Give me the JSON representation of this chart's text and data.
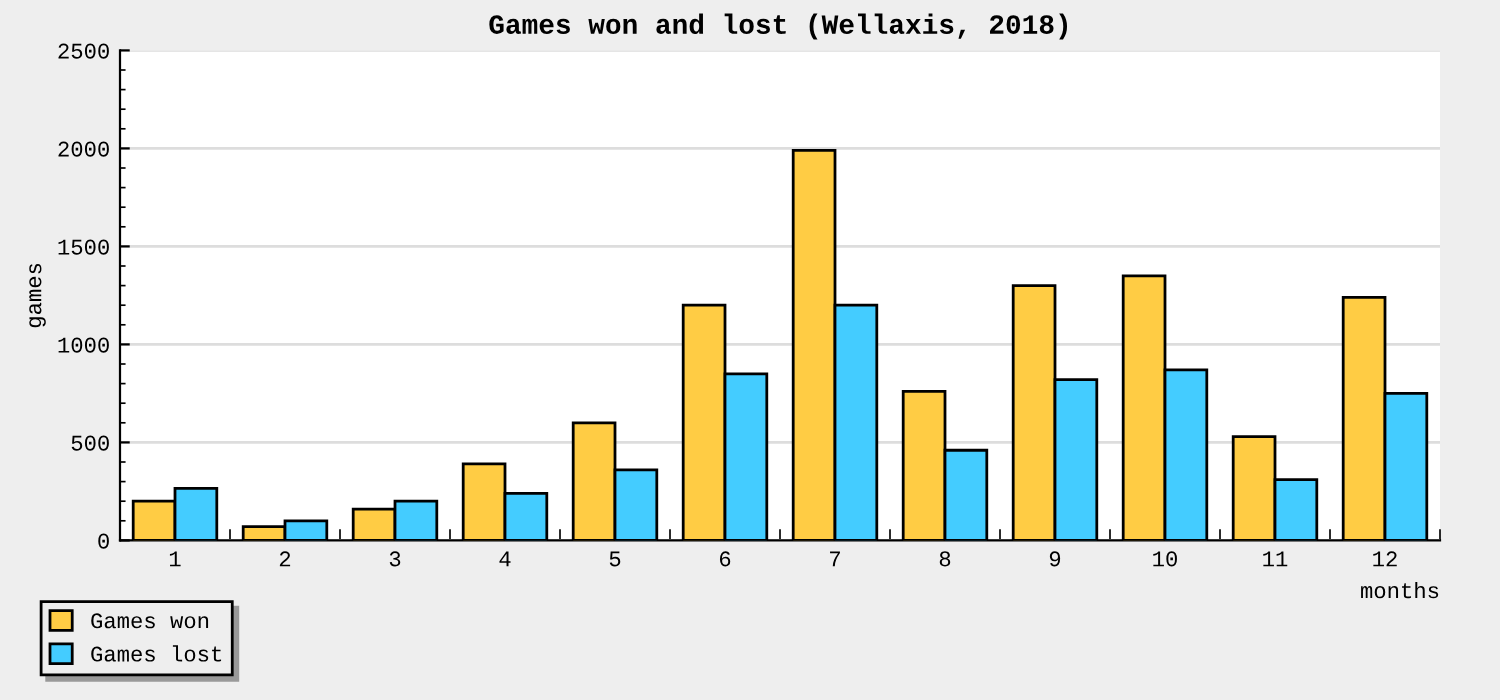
{
  "chart_data": {
    "type": "bar",
    "title": "Games won and lost (Wellaxis, 2018)",
    "xlabel": "months",
    "ylabel": "games",
    "categories": [
      "1",
      "2",
      "3",
      "4",
      "5",
      "6",
      "7",
      "8",
      "9",
      "10",
      "11",
      "12"
    ],
    "series": [
      {
        "name": "Games won",
        "color": "#ffcc44",
        "values": [
          200,
          70,
          160,
          390,
          600,
          1200,
          1990,
          760,
          1300,
          1350,
          530,
          1240
        ]
      },
      {
        "name": "Games lost",
        "color": "#44ccff",
        "values": [
          265,
          100,
          200,
          240,
          360,
          850,
          1200,
          460,
          820,
          870,
          310,
          750
        ]
      }
    ],
    "ylim": [
      0,
      2500
    ],
    "yticks": [
      0,
      500,
      1000,
      1500,
      2000,
      2500
    ],
    "grid": "y",
    "legend": "bottom left"
  }
}
